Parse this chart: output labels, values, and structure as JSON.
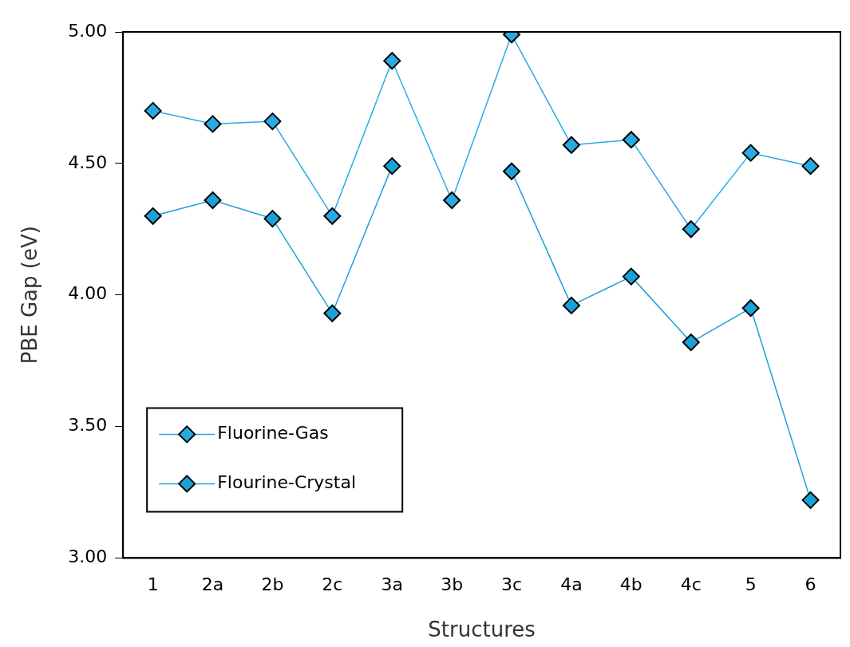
{
  "chart_data": {
    "type": "line",
    "xlabel": "Structures",
    "ylabel": "PBE Gap (eV)",
    "categories": [
      "1",
      "2a",
      "2b",
      "2c",
      "3a",
      "3b",
      "3c",
      "4a",
      "4b",
      "4c",
      "5",
      "6"
    ],
    "series": [
      {
        "name": "Fluorine-Gas",
        "color": "#29abe2",
        "values": [
          4.7,
          4.65,
          4.66,
          4.3,
          4.89,
          4.36,
          4.99,
          4.57,
          4.59,
          4.25,
          4.54,
          4.49
        ]
      },
      {
        "name": "Flourine-Crystal",
        "color": "#1ba1d8",
        "values": [
          4.3,
          4.36,
          4.29,
          3.93,
          4.49,
          null,
          4.47,
          3.96,
          4.07,
          3.82,
          3.95,
          3.22
        ]
      }
    ],
    "ylim": [
      3,
      5
    ],
    "yticks": [
      {
        "value": 3,
        "label": "3.00"
      },
      {
        "value": 3.5,
        "label": "3.50"
      },
      {
        "value": 4,
        "label": "4.00"
      },
      {
        "value": 4.5,
        "label": "4.50"
      },
      {
        "value": 5,
        "label": "5.00"
      }
    ],
    "grid": false,
    "legend": "bottom left",
    "marker": "diamond",
    "line_style": "solid"
  }
}
